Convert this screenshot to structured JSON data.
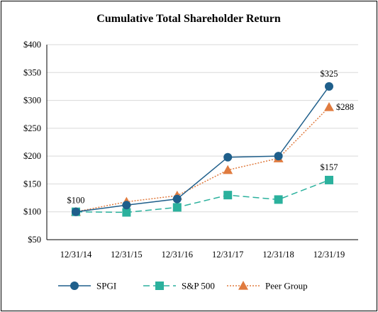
{
  "chart_data": {
    "type": "line",
    "title": "Cumulative Total Shareholder Return",
    "categories": [
      "12/31/14",
      "12/31/15",
      "12/31/16",
      "12/31/17",
      "12/31/18",
      "12/31/19"
    ],
    "y_tick_labels": [
      "$50",
      "$100",
      "$150",
      "$200",
      "$250",
      "$300",
      "$350",
      "$400"
    ],
    "y_ticks": [
      50,
      100,
      150,
      200,
      250,
      300,
      350,
      400
    ],
    "ylim": [
      50,
      400
    ],
    "xlabel": "",
    "ylabel": "",
    "grid": "horizontal",
    "legend_position": "bottom",
    "series": [
      {
        "name": "SPGI",
        "values": [
          100,
          112,
          123,
          198,
          200,
          325
        ],
        "color": "#1f5f8b",
        "line_style": "solid",
        "marker": "circle"
      },
      {
        "name": "S&P 500",
        "values": [
          100,
          99,
          108,
          130,
          122,
          157
        ],
        "color": "#2bb19d",
        "line_style": "dashed",
        "marker": "square"
      },
      {
        "name": "Peer Group",
        "values": [
          100,
          118,
          129,
          175,
          196,
          288
        ],
        "color": "#e07b3f",
        "line_style": "dotted",
        "marker": "triangle"
      }
    ],
    "data_labels": [
      {
        "text": "$100",
        "series": "SPGI",
        "index": 0
      },
      {
        "text": "$325",
        "series": "SPGI",
        "index": 5
      },
      {
        "text": "$288",
        "series": "Peer Group",
        "index": 5
      },
      {
        "text": "$157",
        "series": "S&P 500",
        "index": 5
      }
    ]
  }
}
